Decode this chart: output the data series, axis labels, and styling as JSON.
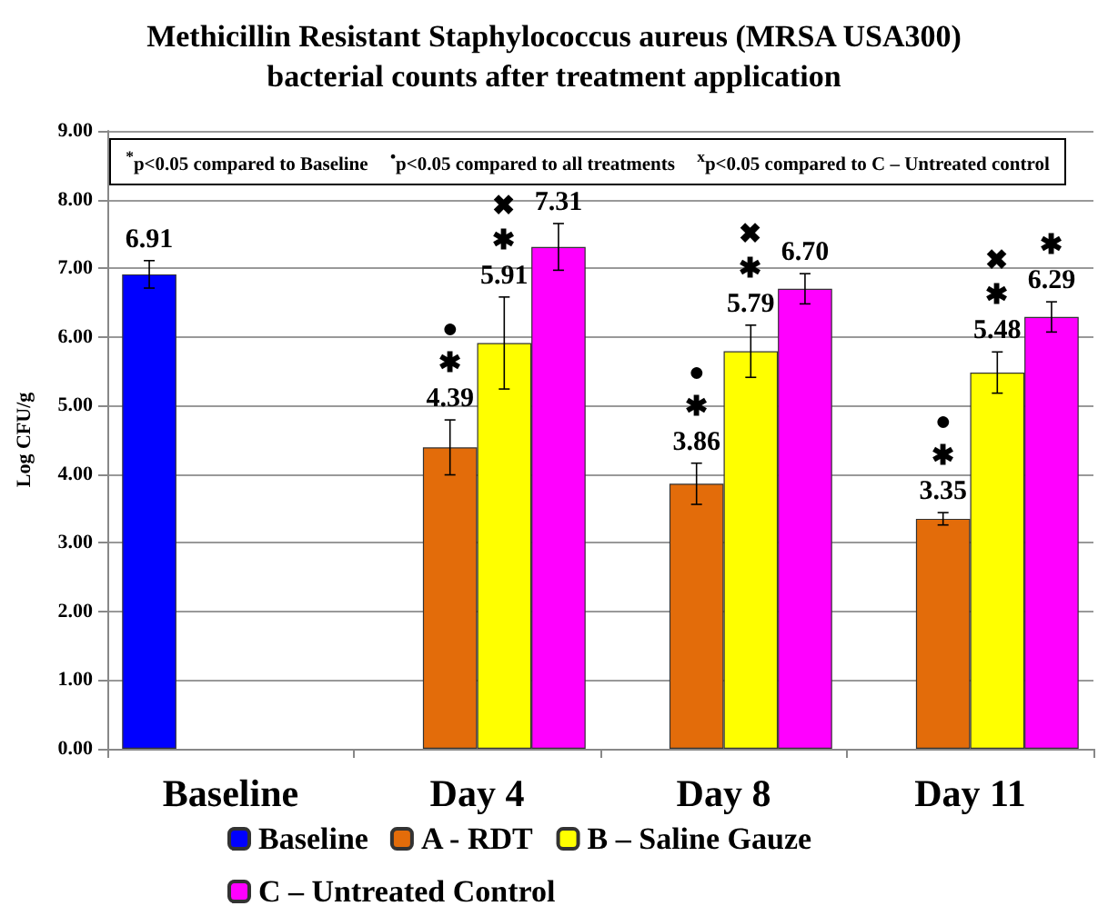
{
  "chart_data": {
    "type": "bar",
    "title": "Methicillin Resistant Staphylococcus aureus (MRSA USA300)\nbacterial counts after treatment application",
    "ylabel": "Log CFU/g",
    "categories": [
      "Baseline",
      "Day 4",
      "Day 8",
      "Day 11"
    ],
    "series": [
      {
        "name": "Baseline",
        "color": "#0000ff",
        "values": [
          6.91,
          null,
          null,
          null
        ],
        "errors": [
          0.2,
          null,
          null,
          null
        ],
        "value_labels": [
          "6.91",
          null,
          null,
          null
        ]
      },
      {
        "name": "A - RDT",
        "color": "#e36c0a",
        "values": [
          null,
          4.39,
          3.86,
          3.35
        ],
        "errors": [
          null,
          0.4,
          0.3,
          0.09
        ],
        "value_labels": [
          null,
          "●\n✱\n4.39",
          "●\n✱\n3.86",
          "●\n✱\n3.35"
        ]
      },
      {
        "name": "B – Saline Gauze",
        "color": "#ffff00",
        "values": [
          null,
          5.91,
          5.79,
          5.48
        ],
        "errors": [
          null,
          0.67,
          0.38,
          0.3
        ],
        "value_labels": [
          null,
          "✖\n✱\n5.91",
          "✖\n✱\n5.79",
          "✖\n✱\n5.48"
        ]
      },
      {
        "name": "C – Untreated Control",
        "color": "#ff00ff",
        "values": [
          null,
          7.31,
          6.7,
          6.29
        ],
        "errors": [
          null,
          0.34,
          0.22,
          0.22
        ],
        "value_labels": [
          null,
          "7.31",
          "6.70",
          "✱\n6.29"
        ]
      }
    ],
    "ylim": [
      0,
      9
    ],
    "yticks": [
      {
        "value": 0,
        "label": "0.00"
      },
      {
        "value": 1,
        "label": "1.00"
      },
      {
        "value": 2,
        "label": "2.00"
      },
      {
        "value": 3,
        "label": "3.00"
      },
      {
        "value": 4,
        "label": "4.00"
      },
      {
        "value": 5,
        "label": "5.00"
      },
      {
        "value": 6,
        "label": "6.00"
      },
      {
        "value": 7,
        "label": "7.00"
      },
      {
        "value": 8,
        "label": "8.00"
      },
      {
        "value": 9,
        "label": "9.00"
      }
    ],
    "grid": "y",
    "legend": "bottom",
    "annotations": [
      "$^{*}$p<0.05 compared to Baseline",
      "$^{•}$p<0.05 compared to all treatments",
      "$^{x}$p<0.05 compared to C – Untreated control"
    ]
  }
}
